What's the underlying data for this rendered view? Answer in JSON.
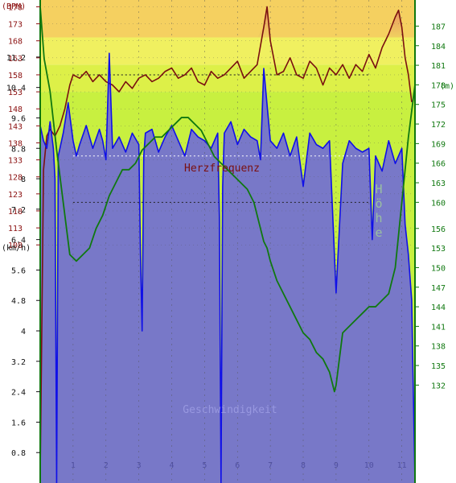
{
  "chart_data": {
    "type": "line",
    "title": "",
    "x_ticks": [
      1,
      2,
      3,
      4,
      5,
      6,
      7,
      8,
      9,
      10,
      11
    ],
    "xlim": [
      0,
      11.4
    ],
    "hr_axis": {
      "label": "(BPM)",
      "ticks": [
        108,
        113,
        118,
        123,
        128,
        133,
        138,
        143,
        148,
        153,
        158,
        163,
        168,
        173,
        178
      ],
      "range": [
        38,
        180
      ]
    },
    "speed_axis": {
      "label": "(km/h)",
      "ticks": [
        0.8,
        1.6,
        2.4,
        3.2,
        4,
        4.8,
        5.6,
        6.4,
        7.2,
        8,
        8.8,
        9.6,
        10.4,
        11.2
      ],
      "range": [
        0,
        12.7
      ]
    },
    "alt_axis": {
      "label": "(m)",
      "ticks": [
        132,
        135,
        138,
        141,
        144,
        147,
        150,
        153,
        156,
        160,
        163,
        166,
        169,
        172,
        175,
        178,
        181,
        184,
        187
      ],
      "range": [
        117,
        191
      ]
    },
    "zones": [
      {
        "from": 38,
        "to": 153,
        "color": "#c8f040"
      },
      {
        "from": 153,
        "to": 161,
        "color": "#ddf048"
      },
      {
        "from": 161,
        "to": 169,
        "color": "#f0f060"
      },
      {
        "from": 169,
        "to": 180,
        "color": "#f5d060"
      }
    ],
    "series": [
      {
        "name": "Herzfrequenz",
        "color": "#7a1010",
        "fill": "#f0d060",
        "fill_top": "#e89060",
        "x": [
          0,
          0.1,
          0.2,
          0.3,
          0.45,
          0.6,
          0.75,
          0.9,
          1.0,
          1.2,
          1.4,
          1.6,
          1.8,
          2.0,
          2.2,
          2.4,
          2.6,
          2.8,
          3.0,
          3.2,
          3.4,
          3.6,
          3.8,
          4.0,
          4.2,
          4.4,
          4.6,
          4.8,
          5.0,
          5.2,
          5.4,
          5.6,
          5.8,
          6.0,
          6.2,
          6.4,
          6.6,
          6.8,
          6.9,
          7.0,
          7.2,
          7.4,
          7.6,
          7.8,
          8.0,
          8.2,
          8.4,
          8.6,
          8.8,
          9.0,
          9.2,
          9.4,
          9.6,
          9.8,
          10.0,
          10.2,
          10.4,
          10.6,
          10.8,
          10.9,
          11.0,
          11.1,
          11.2,
          11.3
        ],
        "values": [
          40,
          130,
          140,
          142,
          140,
          143,
          148,
          155,
          158,
          157,
          159,
          156,
          158,
          156,
          155,
          153,
          156,
          154,
          157,
          158,
          156,
          157,
          159,
          160,
          157,
          158,
          160,
          156,
          155,
          159,
          157,
          158,
          160,
          162,
          157,
          159,
          161,
          172,
          178,
          168,
          158,
          159,
          163,
          158,
          157,
          162,
          160,
          155,
          160,
          158,
          161,
          157,
          161,
          159,
          164,
          160,
          166,
          170,
          175,
          177,
          172,
          163,
          158,
          150
        ]
      },
      {
        "name": "Höhe",
        "color": "#107810",
        "x": [
          0,
          0.12,
          0.3,
          0.5,
          0.7,
          0.9,
          1.1,
          1.3,
          1.5,
          1.7,
          1.9,
          2.1,
          2.3,
          2.5,
          2.7,
          2.9,
          3.1,
          3.3,
          3.5,
          3.7,
          3.9,
          4.1,
          4.3,
          4.5,
          4.7,
          4.9,
          5.1,
          5.3,
          5.5,
          5.7,
          5.9,
          6.1,
          6.3,
          6.5,
          6.6,
          6.7,
          6.8,
          6.9,
          7.0,
          7.2,
          7.4,
          7.6,
          7.8,
          8.0,
          8.2,
          8.4,
          8.6,
          8.8,
          8.95,
          9.0,
          9.2,
          9.4,
          9.6,
          9.8,
          10.0,
          10.2,
          10.4,
          10.6,
          10.8,
          11.0,
          11.2,
          11.4
        ],
        "values": [
          190,
          182,
          177,
          168,
          160,
          152,
          151,
          152,
          153,
          156,
          158,
          161,
          163,
          165,
          165,
          166,
          168,
          169,
          170,
          170,
          171,
          172,
          173,
          173,
          172,
          171,
          169,
          167,
          166,
          165,
          164,
          163,
          162,
          160,
          158,
          156,
          154,
          153,
          151,
          148,
          146,
          144,
          142,
          140,
          139,
          137,
          136,
          134,
          131,
          132,
          140,
          141,
          142,
          143,
          144,
          144,
          145,
          146,
          150,
          160,
          170,
          178
        ]
      },
      {
        "name": "Geschwindigkeit",
        "color": "#1010e8",
        "fill": "#7878c8",
        "x": [
          0,
          0.1,
          0.2,
          0.3,
          0.4,
          0.45,
          0.5,
          0.55,
          0.7,
          0.85,
          1.0,
          1.1,
          1.2,
          1.4,
          1.6,
          1.8,
          1.9,
          2.0,
          2.1,
          2.2,
          2.4,
          2.6,
          2.8,
          3.0,
          3.05,
          3.1,
          3.15,
          3.2,
          3.4,
          3.6,
          3.8,
          4.0,
          4.2,
          4.4,
          4.6,
          4.8,
          5.0,
          5.2,
          5.4,
          5.45,
          5.5,
          5.55,
          5.6,
          5.8,
          6.0,
          6.2,
          6.4,
          6.6,
          6.7,
          6.8,
          7.0,
          7.2,
          7.4,
          7.6,
          7.8,
          8.0,
          8.2,
          8.4,
          8.6,
          8.8,
          9.0,
          9.2,
          9.4,
          9.6,
          9.8,
          10.0,
          10.1,
          10.2,
          10.4,
          10.6,
          10.8,
          11.0,
          11.1,
          11.2,
          11.3,
          11.4
        ],
        "values": [
          9.4,
          9.0,
          8.8,
          9.5,
          8.8,
          8.0,
          0,
          8.6,
          9.2,
          10.0,
          9.0,
          8.6,
          8.9,
          9.4,
          8.8,
          9.3,
          9.0,
          8.5,
          11.3,
          8.8,
          9.1,
          8.7,
          9.2,
          8.9,
          6.0,
          4.0,
          8.6,
          9.2,
          9.3,
          8.7,
          9.1,
          9.4,
          9.0,
          8.6,
          9.3,
          9.1,
          9.0,
          8.8,
          9.2,
          7.0,
          0,
          7.8,
          9.2,
          9.5,
          8.9,
          9.3,
          9.1,
          9.0,
          8.5,
          10.9,
          9.0,
          8.8,
          9.2,
          8.6,
          9.1,
          7.8,
          9.2,
          8.9,
          8.8,
          9.0,
          5.0,
          8.4,
          9.0,
          8.8,
          8.7,
          8.8,
          6.4,
          8.6,
          8.2,
          9.0,
          8.4,
          8.8,
          6.8,
          6.0,
          4.8,
          0
        ]
      }
    ],
    "reference_lines": [
      {
        "series": "Herzfrequenz",
        "value": 158
      },
      {
        "series": "Höhe",
        "value": 160
      },
      {
        "series": "Geschwindigkeit",
        "value": 8.6
      }
    ],
    "annotations": [
      {
        "text": "Herzfrequenz",
        "series": "Herzfrequenz"
      },
      {
        "text": "Höhe",
        "series": "Höhe"
      },
      {
        "text": "Geschwindigkeit",
        "series": "Geschwindigkeit"
      }
    ],
    "colors": {
      "hr_axis": "#8b1010",
      "alt_axis": "#107810",
      "speed_axis": "#111111",
      "grid": "#555555",
      "x_tick_label": "#5050a0",
      "alt_label": "#9ac0a0",
      "speed_label": "#9898e0",
      "hr_label": "#7a1010"
    }
  }
}
